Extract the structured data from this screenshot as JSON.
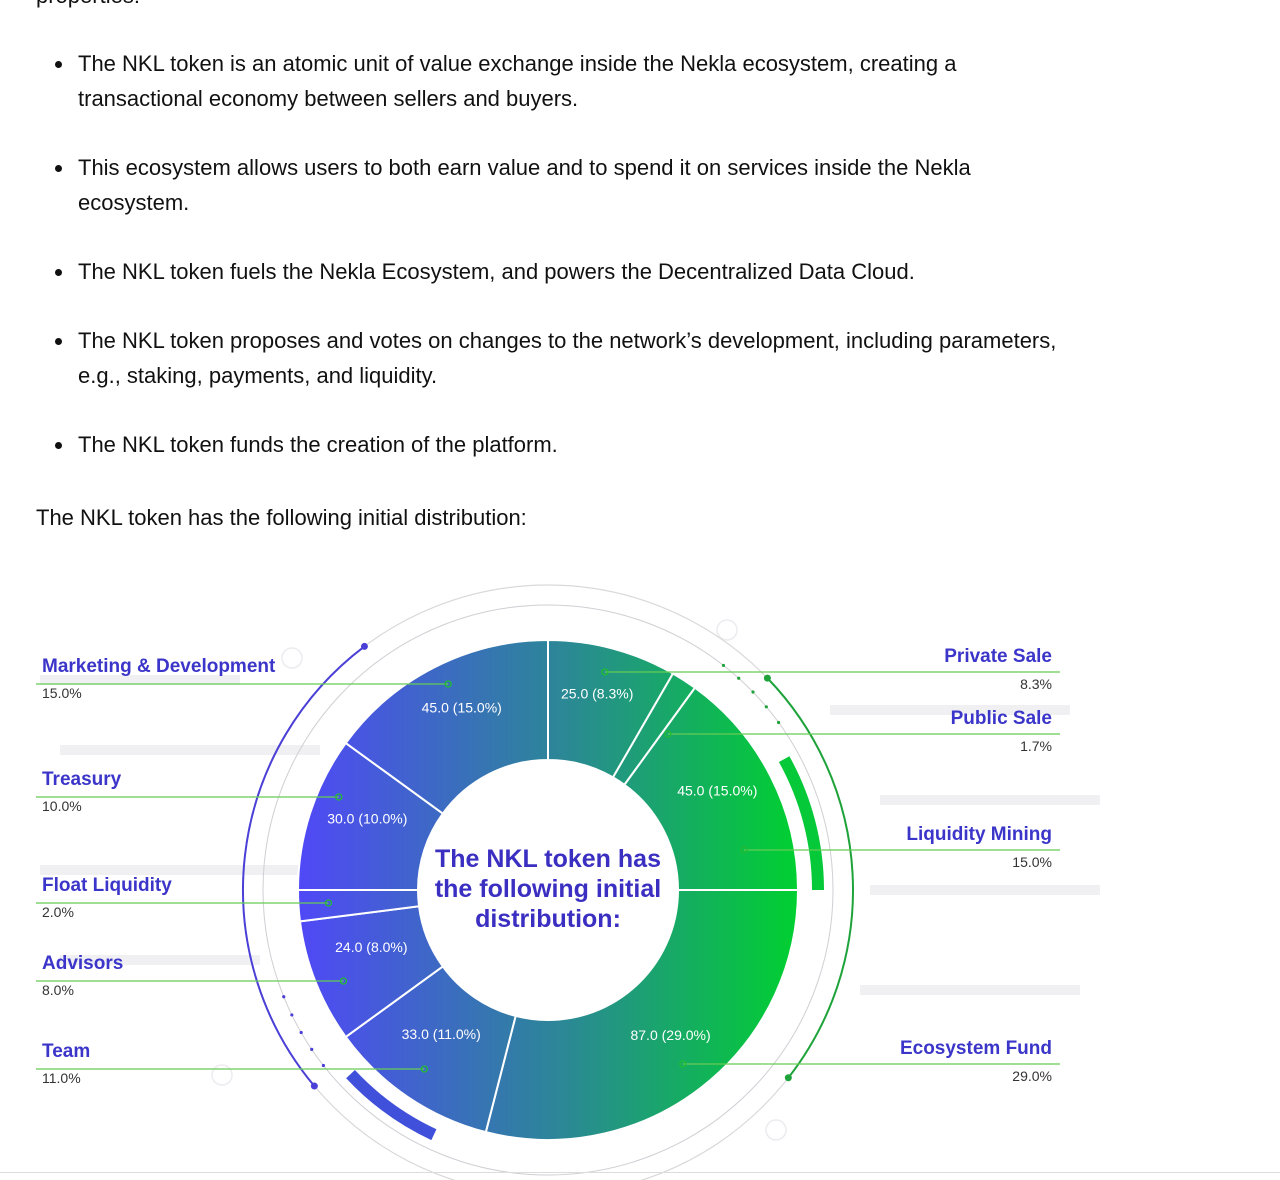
{
  "article": {
    "cut_text": "properties:",
    "bullets": [
      "The NKL token is an atomic unit of value exchange inside the Nekla ecosystem, creating a transactional economy between sellers and buyers.",
      "This ecosystem allows users to both earn value and to spend it on services inside the Nekla ecosystem.",
      "The NKL token fuels the Nekla Ecosystem, and powers the Decentralized Data Cloud.",
      "The NKL token proposes and votes on changes to the network’s development, including parameters, e.g., staking, payments, and liquidity.",
      "The NKL token funds the creation of the platform."
    ],
    "intro": "The NKL token has the following initial distribution:"
  },
  "chart_data": {
    "type": "pie",
    "title": "The NKL token has the following initial distribution:",
    "title_lines": [
      "The NKL token has",
      "the following initial",
      "distribution:"
    ],
    "slices": [
      {
        "name": "Private Sale",
        "value": 25.0,
        "percent": "8.3%",
        "label": "25.0 (8.3%)",
        "color": "#24908a"
      },
      {
        "name": "Public Sale",
        "value": 5.0,
        "percent": "1.7%",
        "label": "",
        "color": "#1fa07a"
      },
      {
        "name": "Liquidity Mining",
        "value": 45.0,
        "percent": "15.0%",
        "label": "45.0 (15.0%)",
        "color": "#14b85a"
      },
      {
        "name": "Ecosystem Fund",
        "value": 87.0,
        "percent": "29.0%",
        "label": "87.0 (29.0%)",
        "color": "#22a070"
      },
      {
        "name": "Team",
        "value": 33.0,
        "percent": "11.0%",
        "label": "33.0 (11.0%)",
        "color": "#3a5fe0"
      },
      {
        "name": "Advisors",
        "value": 24.0,
        "percent": "8.0%",
        "label": "24.0 (8.0%)",
        "color": "#4a4ef0"
      },
      {
        "name": "Float Liquidity",
        "value": 6.0,
        "percent": "2.0%",
        "label": "",
        "color": "#4d4cf2"
      },
      {
        "name": "Treasury",
        "value": 30.0,
        "percent": "10.0%",
        "label": "30.0 (10.0%)",
        "color": "#4f4df4"
      },
      {
        "name": "Marketing & Development",
        "value": 45.0,
        "percent": "15.0%",
        "label": "45.0 (15.0%)",
        "color": "#3d5ae6"
      }
    ],
    "legend_left": [
      "Marketing & Development",
      "Treasury",
      "Float Liquidity",
      "Advisors",
      "Team"
    ],
    "legend_right": [
      "Private Sale",
      "Public Sale",
      "Liquidity Mining",
      "Ecosystem Fund"
    ],
    "colors": {
      "green": "#00cc33",
      "blue": "#4f4df6",
      "teal": "#2a8f90",
      "legend_text": "#3b35c9",
      "leader_line": "#66cc55"
    }
  }
}
